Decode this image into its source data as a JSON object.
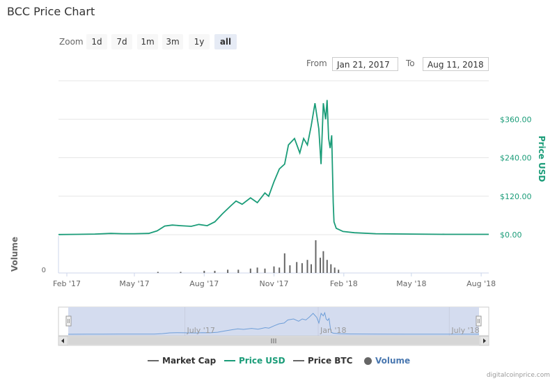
{
  "title": "BCC Price Chart",
  "zoom": {
    "label": "Zoom",
    "buttons": [
      "1d",
      "7d",
      "1m",
      "3m",
      "1y",
      "all"
    ],
    "active": "all"
  },
  "range": {
    "from_label": "From",
    "from_value": "Jan 21, 2017",
    "to_label": "To",
    "to_value": "Aug 11, 2018"
  },
  "legend": [
    {
      "label": "Market Cap",
      "color": "#666666",
      "symbol": "line"
    },
    {
      "label": "Price USD",
      "color": "#1a9c78",
      "symbol": "line"
    },
    {
      "label": "Price BTC",
      "color": "#666666",
      "symbol": "line"
    },
    {
      "label": "Volume",
      "color": "#666666",
      "symbol": "dot"
    }
  ],
  "credit": "digitalcoinprice.com",
  "colors": {
    "price": "#1a9c78",
    "volume": "#666666",
    "navigator_fill": "#d4dcef",
    "navigator_line": "#6e9ed8"
  },
  "chart_data": {
    "type": "line",
    "series": [
      {
        "name": "Price USD",
        "x": [
          "2017-01-21",
          "2017-02-15",
          "2017-03-10",
          "2017-03-31",
          "2017-04-15",
          "2017-05-01",
          "2017-05-20",
          "2017-05-31",
          "2017-06-10",
          "2017-06-20",
          "2017-07-01",
          "2017-07-15",
          "2017-07-25",
          "2017-08-05",
          "2017-08-15",
          "2017-08-25",
          "2017-09-05",
          "2017-09-12",
          "2017-09-20",
          "2017-10-01",
          "2017-10-10",
          "2017-10-20",
          "2017-10-25",
          "2017-11-01",
          "2017-11-08",
          "2017-11-15",
          "2017-11-20",
          "2017-11-28",
          "2017-12-05",
          "2017-12-10",
          "2017-12-15",
          "2017-12-20",
          "2017-12-25",
          "2017-12-30",
          "2018-01-02",
          "2018-01-05",
          "2018-01-08",
          "2018-01-10",
          "2018-01-12",
          "2018-01-14",
          "2018-01-16",
          "2018-01-18",
          "2018-01-19",
          "2018-01-22",
          "2018-01-31",
          "2018-02-15",
          "2018-03-15",
          "2018-05-01",
          "2018-06-15",
          "2018-08-11"
        ],
        "values": [
          0.5,
          1,
          2,
          4,
          3,
          3,
          4,
          12,
          27,
          30,
          28,
          26,
          32,
          28,
          40,
          65,
          90,
          105,
          95,
          115,
          100,
          130,
          120,
          165,
          205,
          220,
          280,
          300,
          255,
          300,
          280,
          340,
          410,
          330,
          220,
          410,
          360,
          420,
          300,
          270,
          310,
          100,
          40,
          20,
          10,
          6,
          3,
          2,
          1,
          1
        ]
      },
      {
        "name": "Volume",
        "x": [
          "2017-06-01",
          "2017-07-01",
          "2017-08-01",
          "2017-08-15",
          "2017-09-01",
          "2017-09-15",
          "2017-10-01",
          "2017-10-10",
          "2017-10-20",
          "2017-11-01",
          "2017-11-08",
          "2017-11-15",
          "2017-11-22",
          "2017-12-01",
          "2017-12-08",
          "2017-12-15",
          "2017-12-20",
          "2017-12-26",
          "2018-01-01",
          "2018-01-05",
          "2018-01-10",
          "2018-01-15",
          "2018-01-20",
          "2018-01-25"
        ],
        "values": [
          1,
          1,
          2,
          2,
          3,
          3,
          4,
          5,
          4,
          6,
          5,
          18,
          7,
          10,
          9,
          12,
          8,
          30,
          14,
          20,
          12,
          8,
          5,
          3
        ]
      }
    ],
    "x_ticks": [
      "Feb '17",
      "May '17",
      "Aug '17",
      "Nov '17",
      "Feb '18",
      "May '18",
      "Aug '18"
    ],
    "y_ticks": [
      "$0.00",
      "$120.00",
      "$240.00",
      "$360.00"
    ],
    "y_values": [
      0,
      120,
      240,
      360
    ],
    "ylabel": "Price USD",
    "ylim": [
      0,
      480
    ],
    "volume_axis_label": "Volume",
    "volume_tick": "0",
    "navigator_ticks": [
      "July '17",
      "Jan '18",
      "July '18"
    ],
    "grid": true
  }
}
